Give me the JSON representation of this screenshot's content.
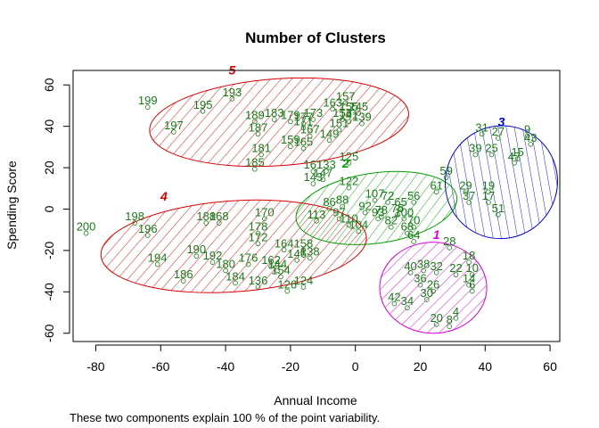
{
  "chart_data": {
    "type": "scatter",
    "title": "Number of Clusters",
    "xlabel": "Annual Income",
    "ylabel": "Spending Score",
    "caption": "These two components explain 100 % of the point variability.",
    "xlim": [
      -87,
      63
    ],
    "ylim": [
      -64,
      67
    ],
    "xticks": [
      -80,
      -60,
      -40,
      -20,
      0,
      20,
      40,
      60
    ],
    "yticks": [
      -60,
      -40,
      -20,
      0,
      20,
      40,
      60
    ],
    "point_color": "#1a7a1a",
    "clusters": [
      {
        "label": "1",
        "color": "#d400d4",
        "center": [
          24,
          -38
        ],
        "rx": 16.5,
        "ry": 22,
        "angle": 0,
        "label_pos": [
          25,
          -14.5
        ]
      },
      {
        "label": "2",
        "color": "#00a000",
        "center": [
          6.5,
          0.5
        ],
        "rx": 25,
        "ry": 17,
        "angle": -8,
        "label_pos": [
          -3,
          20
        ]
      },
      {
        "label": "3",
        "color": "#0000c8",
        "center": [
          45,
          13
        ],
        "rx": 17.5,
        "ry": 27,
        "angle": -55,
        "label_pos": [
          45,
          40
        ]
      },
      {
        "label": "4",
        "color": "#d40000",
        "center": [
          -37.5,
          -18
        ],
        "rx": 41,
        "ry": 22,
        "angle": -4,
        "label_pos": [
          -59,
          4
        ]
      },
      {
        "label": "5",
        "color": "#d40000",
        "center": [
          -23.5,
          42
        ],
        "rx": 40,
        "ry": 21,
        "angle": -4,
        "label_pos": [
          -38,
          65
        ]
      }
    ],
    "points": [
      {
        "label": "199",
        "x": -64,
        "y": 51
      },
      {
        "label": "195",
        "x": -47,
        "y": 49
      },
      {
        "label": "193",
        "x": -38,
        "y": 55
      },
      {
        "label": "197",
        "x": -56,
        "y": 39
      },
      {
        "label": "189",
        "x": -31,
        "y": 44
      },
      {
        "label": "183",
        "x": -25,
        "y": 45
      },
      {
        "label": "187",
        "x": -30,
        "y": 38
      },
      {
        "label": "179",
        "x": -20,
        "y": 44
      },
      {
        "label": "177",
        "x": -16,
        "y": 43
      },
      {
        "label": "173",
        "x": -13,
        "y": 45
      },
      {
        "label": "171",
        "x": -16,
        "y": 41
      },
      {
        "label": "167",
        "x": -14,
        "y": 37
      },
      {
        "label": "163",
        "x": -7,
        "y": 50
      },
      {
        "label": "157",
        "x": -3,
        "y": 53
      },
      {
        "label": "155",
        "x": -2,
        "y": 48
      },
      {
        "label": "153",
        "x": -4,
        "y": 45
      },
      {
        "label": "145",
        "x": 1,
        "y": 48
      },
      {
        "label": "141",
        "x": -2,
        "y": 44
      },
      {
        "label": "139",
        "x": 2,
        "y": 43
      },
      {
        "label": "151",
        "x": -5,
        "y": 40
      },
      {
        "label": "149",
        "x": -8,
        "y": 35
      },
      {
        "label": "159",
        "x": -20,
        "y": 32
      },
      {
        "label": "165",
        "x": -16,
        "y": 31
      },
      {
        "label": "181",
        "x": -29,
        "y": 28
      },
      {
        "label": "185",
        "x": -31,
        "y": 21
      },
      {
        "label": "161",
        "x": -13,
        "y": 20
      },
      {
        "label": "133",
        "x": -9,
        "y": 20
      },
      {
        "label": "147",
        "x": -10,
        "y": 16
      },
      {
        "label": "125",
        "x": -2,
        "y": 24
      },
      {
        "label": "143",
        "x": -13,
        "y": 14
      },
      {
        "label": "122",
        "x": -2,
        "y": 12
      },
      {
        "label": "107",
        "x": 6,
        "y": 6
      },
      {
        "label": "72",
        "x": 10,
        "y": 5
      },
      {
        "label": "56",
        "x": 18,
        "y": 5
      },
      {
        "label": "86",
        "x": -8,
        "y": 2
      },
      {
        "label": "92",
        "x": 3,
        "y": 0
      },
      {
        "label": "65",
        "x": 14,
        "y": 2
      },
      {
        "label": "97",
        "x": -5,
        "y": -3
      },
      {
        "label": "78",
        "x": 8,
        "y": -2
      },
      {
        "label": "100",
        "x": 15,
        "y": -3
      },
      {
        "label": "110",
        "x": -2,
        "y": -6
      },
      {
        "label": "82",
        "x": 11,
        "y": -7
      },
      {
        "label": "70",
        "x": 18,
        "y": -7
      },
      {
        "label": "113",
        "x": -12,
        "y": -4
      },
      {
        "label": "104",
        "x": 1,
        "y": -9
      },
      {
        "label": "68",
        "x": 16,
        "y": -10
      },
      {
        "label": "64",
        "x": 18,
        "y": -14
      },
      {
        "label": "93",
        "x": 7,
        "y": -3
      },
      {
        "label": "88",
        "x": -4,
        "y": 3
      },
      {
        "label": "75",
        "x": 13,
        "y": -1
      },
      {
        "label": "31",
        "x": 39,
        "y": 38
      },
      {
        "label": "27",
        "x": 44,
        "y": 36
      },
      {
        "label": "9",
        "x": 53,
        "y": 37
      },
      {
        "label": "43",
        "x": 54,
        "y": 33
      },
      {
        "label": "39",
        "x": 37,
        "y": 28
      },
      {
        "label": "25",
        "x": 42,
        "y": 28
      },
      {
        "label": "15",
        "x": 50,
        "y": 26
      },
      {
        "label": "47",
        "x": 49,
        "y": 24
      },
      {
        "label": "59",
        "x": 28,
        "y": 17
      },
      {
        "label": "61",
        "x": 25,
        "y": 10
      },
      {
        "label": "29",
        "x": 34,
        "y": 10
      },
      {
        "label": "19",
        "x": 41,
        "y": 10
      },
      {
        "label": "17",
        "x": 41,
        "y": 5
      },
      {
        "label": "37",
        "x": 35,
        "y": 5
      },
      {
        "label": "51",
        "x": 44,
        "y": -1
      },
      {
        "label": "200",
        "x": -83,
        "y": -10
      },
      {
        "label": "198",
        "x": -68,
        "y": -5
      },
      {
        "label": "196",
        "x": -64,
        "y": -11
      },
      {
        "label": "188",
        "x": -46,
        "y": -5
      },
      {
        "label": "168",
        "x": -42,
        "y": -5
      },
      {
        "label": "170",
        "x": -28,
        "y": -3
      },
      {
        "label": "178",
        "x": -30,
        "y": -10
      },
      {
        "label": "194",
        "x": -61,
        "y": -25
      },
      {
        "label": "190",
        "x": -49,
        "y": -21
      },
      {
        "label": "192",
        "x": -44,
        "y": -24
      },
      {
        "label": "180",
        "x": -40,
        "y": -28
      },
      {
        "label": "176",
        "x": -33,
        "y": -25
      },
      {
        "label": "172",
        "x": -30,
        "y": -15
      },
      {
        "label": "164",
        "x": -22,
        "y": -18
      },
      {
        "label": "158",
        "x": -16,
        "y": -18
      },
      {
        "label": "162",
        "x": -26,
        "y": -26
      },
      {
        "label": "146",
        "x": -18,
        "y": -23
      },
      {
        "label": "186",
        "x": -53,
        "y": -33
      },
      {
        "label": "184",
        "x": -37,
        "y": -34
      },
      {
        "label": "154",
        "x": -23,
        "y": -31
      },
      {
        "label": "144",
        "x": -24,
        "y": -28
      },
      {
        "label": "124",
        "x": -16,
        "y": -36
      },
      {
        "label": "136",
        "x": -30,
        "y": -36
      },
      {
        "label": "126",
        "x": -21,
        "y": -38
      },
      {
        "label": "138",
        "x": -14,
        "y": -22
      },
      {
        "label": "28",
        "x": 29,
        "y": -17
      },
      {
        "label": "18",
        "x": 35,
        "y": -24
      },
      {
        "label": "40",
        "x": 17,
        "y": -29
      },
      {
        "label": "38",
        "x": 21,
        "y": -28
      },
      {
        "label": "32",
        "x": 25,
        "y": -29
      },
      {
        "label": "22",
        "x": 31,
        "y": -30
      },
      {
        "label": "10",
        "x": 36,
        "y": -30
      },
      {
        "label": "36",
        "x": 20,
        "y": -35
      },
      {
        "label": "14",
        "x": 35,
        "y": -35
      },
      {
        "label": "26",
        "x": 24,
        "y": -38
      },
      {
        "label": "6",
        "x": 36,
        "y": -38
      },
      {
        "label": "30",
        "x": 22,
        "y": -42
      },
      {
        "label": "42",
        "x": 12,
        "y": -44
      },
      {
        "label": "34",
        "x": 16,
        "y": -46
      },
      {
        "label": "20",
        "x": 25,
        "y": -54
      },
      {
        "label": "4",
        "x": 31,
        "y": -51
      },
      {
        "label": "8",
        "x": 29,
        "y": -55
      }
    ]
  }
}
